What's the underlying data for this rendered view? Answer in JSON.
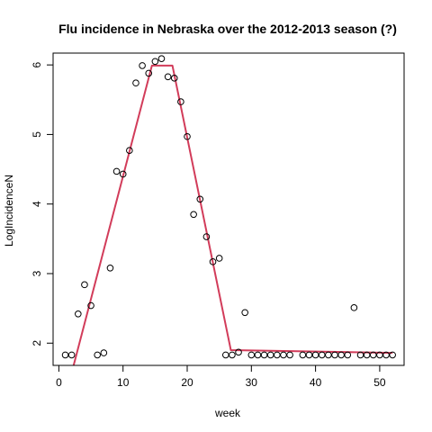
{
  "chart_data": {
    "type": "scatter",
    "title": "Flu incidence in Nebraska over the 2012-2013 season (?)",
    "xlabel": "week",
    "ylabel": "LogIncidenceN",
    "xlim": [
      -0.9,
      53.8
    ],
    "ylim": [
      1.68,
      6.17
    ],
    "xticks": [
      0,
      10,
      20,
      30,
      40,
      50
    ],
    "yticks": [
      2,
      3,
      4,
      5,
      6
    ],
    "grid": false,
    "legend": "none",
    "point_color": "#000000",
    "line_color": "#d23c5a",
    "points": [
      {
        "x": 1,
        "y": 1.83
      },
      {
        "x": 2,
        "y": 1.83
      },
      {
        "x": 3,
        "y": 2.42
      },
      {
        "x": 4,
        "y": 2.84
      },
      {
        "x": 5,
        "y": 2.54
      },
      {
        "x": 6,
        "y": 1.83
      },
      {
        "x": 7,
        "y": 1.86
      },
      {
        "x": 8,
        "y": 3.08
      },
      {
        "x": 9,
        "y": 4.47
      },
      {
        "x": 10,
        "y": 4.43
      },
      {
        "x": 11,
        "y": 4.77
      },
      {
        "x": 12,
        "y": 5.74
      },
      {
        "x": 13,
        "y": 5.99
      },
      {
        "x": 14,
        "y": 5.88
      },
      {
        "x": 15,
        "y": 6.05
      },
      {
        "x": 16,
        "y": 6.09
      },
      {
        "x": 17,
        "y": 5.83
      },
      {
        "x": 18,
        "y": 5.81
      },
      {
        "x": 19,
        "y": 5.47
      },
      {
        "x": 20,
        "y": 4.97
      },
      {
        "x": 21,
        "y": 3.85
      },
      {
        "x": 22,
        "y": 4.07
      },
      {
        "x": 23,
        "y": 3.53
      },
      {
        "x": 24,
        "y": 3.17
      },
      {
        "x": 25,
        "y": 3.22
      },
      {
        "x": 26,
        "y": 1.83
      },
      {
        "x": 27,
        "y": 1.83
      },
      {
        "x": 28,
        "y": 1.87
      },
      {
        "x": 29,
        "y": 2.44
      },
      {
        "x": 30,
        "y": 1.83
      },
      {
        "x": 31,
        "y": 1.83
      },
      {
        "x": 32,
        "y": 1.83
      },
      {
        "x": 33,
        "y": 1.83
      },
      {
        "x": 34,
        "y": 1.83
      },
      {
        "x": 35,
        "y": 1.83
      },
      {
        "x": 36,
        "y": 1.83
      },
      {
        "x": 38,
        "y": 1.83
      },
      {
        "x": 39,
        "y": 1.83
      },
      {
        "x": 40,
        "y": 1.83
      },
      {
        "x": 41,
        "y": 1.83
      },
      {
        "x": 42,
        "y": 1.83
      },
      {
        "x": 43,
        "y": 1.83
      },
      {
        "x": 44,
        "y": 1.83
      },
      {
        "x": 45,
        "y": 1.83
      },
      {
        "x": 46,
        "y": 2.51
      },
      {
        "x": 47,
        "y": 1.83
      },
      {
        "x": 48,
        "y": 1.83
      },
      {
        "x": 49,
        "y": 1.83
      },
      {
        "x": 50,
        "y": 1.83
      },
      {
        "x": 51,
        "y": 1.83
      },
      {
        "x": 52,
        "y": 1.83
      }
    ],
    "fit_line": [
      {
        "x": 2.3,
        "y": 1.68
      },
      {
        "x": 14.5,
        "y": 5.99
      },
      {
        "x": 17.7,
        "y": 5.99
      },
      {
        "x": 26.8,
        "y": 1.9
      },
      {
        "x": 52,
        "y": 1.86
      }
    ]
  }
}
